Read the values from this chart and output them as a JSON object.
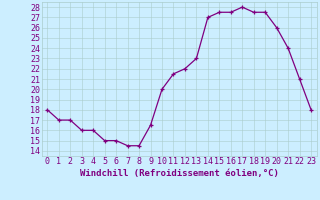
{
  "x": [
    0,
    1,
    2,
    3,
    4,
    5,
    6,
    7,
    8,
    9,
    10,
    11,
    12,
    13,
    14,
    15,
    16,
    17,
    18,
    19,
    20,
    21,
    22,
    23
  ],
  "y": [
    18,
    17,
    17,
    16,
    16,
    15,
    15,
    14.5,
    14.5,
    16.5,
    20,
    21.5,
    22,
    23,
    27,
    27.5,
    27.5,
    28,
    27.5,
    27.5,
    26,
    24,
    21,
    18
  ],
  "line_color": "#800080",
  "marker_color": "#800080",
  "bg_color": "#cceeff",
  "grid_color": "#aacccc",
  "xlabel": "Windchill (Refroidissement éolien,°C)",
  "ylabel_ticks": [
    14,
    15,
    16,
    17,
    18,
    19,
    20,
    21,
    22,
    23,
    24,
    25,
    26,
    27,
    28
  ],
  "xlim": [
    -0.5,
    23.5
  ],
  "ylim": [
    13.5,
    28.5
  ],
  "xticks": [
    0,
    1,
    2,
    3,
    4,
    5,
    6,
    7,
    8,
    9,
    10,
    11,
    12,
    13,
    14,
    15,
    16,
    17,
    18,
    19,
    20,
    21,
    22,
    23
  ],
  "font_size": 6.0,
  "xlabel_fontsize": 6.5,
  "label_color": "#800080",
  "lw": 0.9,
  "marker_size": 3.5
}
